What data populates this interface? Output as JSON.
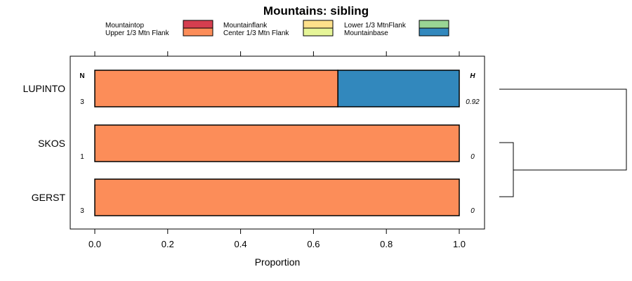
{
  "chart_data": {
    "type": "bar",
    "orientation": "horizontal",
    "stacked": true,
    "title": "Mountains: sibling",
    "xlabel": "Proportion",
    "ylabel": "",
    "xlim": [
      0,
      1
    ],
    "x_ticks": [
      "0.0",
      "0.2",
      "0.4",
      "0.6",
      "0.8",
      "1.0"
    ],
    "categories": [
      "LUPINTO",
      "SKOS",
      "GERST"
    ],
    "n_header": "N",
    "h_header": "H",
    "n_values": [
      "3",
      "1",
      "3"
    ],
    "h_values": [
      "0.92",
      "0",
      "0"
    ],
    "legend": [
      {
        "name": "Mountaintop",
        "color": "#d53e4f"
      },
      {
        "name": "Upper 1/3 Mtn Flank",
        "color": "#fc8d59"
      },
      {
        "name": "Mountainflank",
        "color": "#fee08b"
      },
      {
        "name": "Center 1/3 Mtn Flank",
        "color": "#e6f598"
      },
      {
        "name": "Lower 1/3 MtnFlank",
        "color": "#99d594"
      },
      {
        "name": "Mountainbase",
        "color": "#3288bd"
      }
    ],
    "series": [
      {
        "name": "Mountaintop",
        "color": "#d53e4f",
        "values": [
          0,
          0,
          0
        ]
      },
      {
        "name": "Upper 1/3 Mtn Flank",
        "color": "#fc8d59",
        "values": [
          0.667,
          1,
          1
        ]
      },
      {
        "name": "Mountainflank",
        "color": "#fee08b",
        "values": [
          0,
          0,
          0
        ]
      },
      {
        "name": "Center 1/3 Mtn Flank",
        "color": "#e6f598",
        "values": [
          0,
          0,
          0
        ]
      },
      {
        "name": "Lower 1/3 MtnFlank",
        "color": "#99d594",
        "values": [
          0,
          0,
          0
        ]
      },
      {
        "name": "Mountainbase",
        "color": "#3288bd",
        "values": [
          0.333,
          0,
          0
        ]
      }
    ],
    "dendrogram": {
      "merges": [
        [
          "SKOS",
          "GERST"
        ],
        [
          "LUPINTO",
          "SKOS+GERST"
        ]
      ]
    }
  }
}
